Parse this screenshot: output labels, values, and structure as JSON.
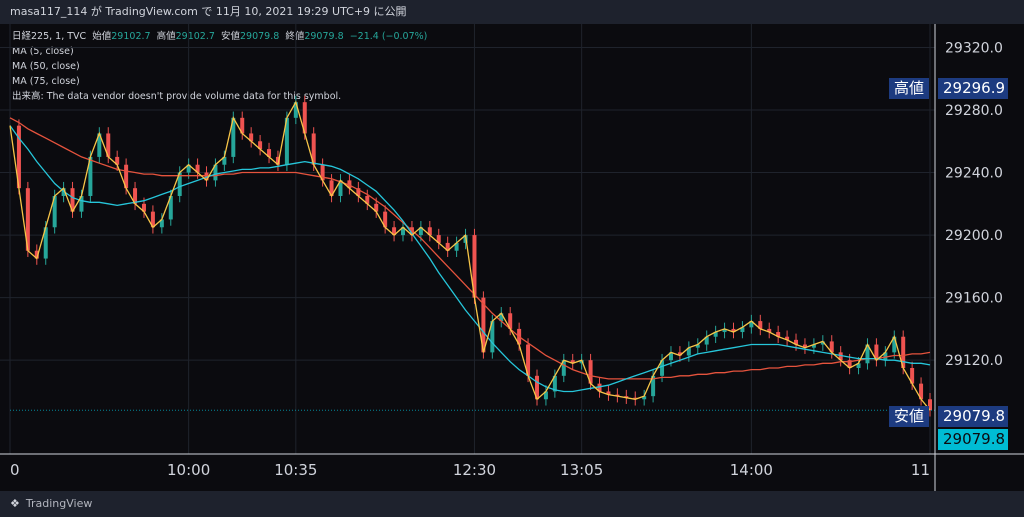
{
  "header": {
    "title": "masa117_114 が TradingView.com で 11月 10, 2021 19:29 UTC+9 に公開"
  },
  "legend": {
    "symbol": "日経225, 1, TVC",
    "open_label": "始値",
    "open": "29102.7",
    "high_label": "高値",
    "high": "29102.7",
    "low_label": "安値",
    "low": "29079.8",
    "close_label": "終値",
    "close": "29079.8",
    "change": "−21.4 (−0.07%)",
    "ma1": "MA (5, close)",
    "ma2": "MA (50, close)",
    "ma3": "MA (75, close)",
    "volume": "出来高: The data vendor doesn't provide volume data for this symbol."
  },
  "tags": {
    "high_label": "高値",
    "high_value": "29296.9",
    "low_label": "安値",
    "low_value": "29079.8",
    "last_value": "29079.8"
  },
  "footer": {
    "brand": "TradingView"
  },
  "colors": {
    "up": "#26a69a",
    "down": "#ef5350",
    "ma5": "#f7c548",
    "ma50": "#26c6da",
    "ma75": "#e5533d"
  },
  "chart_data": {
    "type": "line",
    "ylim": [
      29060,
      29335
    ],
    "yticks": [
      29320,
      29280,
      29240,
      29200,
      29160,
      29120
    ],
    "ytick_labels": [
      "29320.0",
      "29280.0",
      "29240.0",
      "29200.0",
      "29160.0",
      "29120.0"
    ],
    "xticks": [
      {
        "label": "0",
        "i": 0
      },
      {
        "label": "10:00",
        "i": 20
      },
      {
        "label": "10:35",
        "i": 32
      },
      {
        "label": "12:30",
        "i": 52
      },
      {
        "label": "13:05",
        "i": 64
      },
      {
        "label": "14:00",
        "i": 83
      },
      {
        "label": "11",
        "i": 103
      }
    ],
    "n": 104,
    "series": [
      {
        "name": "MA (5, close)",
        "type": "ma5",
        "values": [
          29270,
          29230,
          29190,
          29185,
          29205,
          29225,
          29230,
          29215,
          29225,
          29250,
          29265,
          29250,
          29245,
          29230,
          29220,
          29215,
          29205,
          29210,
          29225,
          29240,
          29245,
          29240,
          29235,
          29245,
          29250,
          29275,
          29265,
          29260,
          29255,
          29250,
          29245,
          29275,
          29285,
          29265,
          29245,
          29235,
          29225,
          29235,
          29230,
          29225,
          29220,
          29215,
          29205,
          29200,
          29205,
          29200,
          29205,
          29200,
          29195,
          29190,
          29195,
          29200,
          29160,
          29125,
          29145,
          29150,
          29140,
          29130,
          29110,
          29095,
          29100,
          29110,
          29120,
          29118,
          29120,
          29105,
          29100,
          29098,
          29097,
          29096,
          29095,
          29097,
          29110,
          29120,
          29125,
          29123,
          29128,
          29130,
          29135,
          29138,
          29140,
          29138,
          29141,
          29145,
          29140,
          29138,
          29135,
          29133,
          29130,
          29128,
          29130,
          29132,
          29125,
          29120,
          29115,
          29118,
          29130,
          29120,
          29125,
          29135,
          29115,
          29105,
          29095,
          29088
        ]
      },
      {
        "name": "MA (50, close)",
        "type": "ma50",
        "values": [
          29270,
          29262,
          29255,
          29247,
          29240,
          29233,
          29228,
          29224,
          29222,
          29221,
          29221,
          29220,
          29219,
          29220,
          29221,
          29222,
          29224,
          29226,
          29228,
          29231,
          29233,
          29235,
          29237,
          29239,
          29240,
          29241,
          29242,
          29242,
          29243,
          29243,
          29244,
          29245,
          29246,
          29247,
          29246,
          29245,
          29244,
          29242,
          29239,
          29236,
          29232,
          29228,
          29222,
          29216,
          29209,
          29201,
          29193,
          29185,
          29176,
          29168,
          29160,
          29152,
          29145,
          29138,
          29131,
          29125,
          29119,
          29114,
          29110,
          29106,
          29103,
          29101,
          29100,
          29100,
          29101,
          29102,
          29103,
          29104,
          29106,
          29108,
          29110,
          29112,
          29114,
          29116,
          29118,
          29120,
          29122,
          29124,
          29125,
          29126,
          29127,
          29128,
          29129,
          29130,
          29130,
          29130,
          29130,
          29129,
          29128,
          29127,
          29126,
          29125,
          29124,
          29123,
          29122,
          29121,
          29121,
          29121,
          29120,
          29120,
          29119,
          29118,
          29118,
          29117
        ]
      },
      {
        "name": "MA (75, close)",
        "type": "ma75",
        "values": [
          29275,
          29272,
          29268,
          29265,
          29262,
          29259,
          29256,
          29253,
          29250,
          29248,
          29246,
          29244,
          29242,
          29241,
          29240,
          29239,
          29239,
          29238,
          29238,
          29238,
          29238,
          29238,
          29238,
          29238,
          29239,
          29239,
          29240,
          29240,
          29240,
          29240,
          29240,
          29240,
          29240,
          29239,
          29238,
          29237,
          29236,
          29234,
          29232,
          29229,
          29226,
          29222,
          29218,
          29213,
          29208,
          29203,
          29198,
          29192,
          29186,
          29180,
          29174,
          29168,
          29162,
          29156,
          29150,
          29145,
          29140,
          29135,
          29131,
          29127,
          29123,
          29120,
          29117,
          29114,
          29112,
          29110,
          29109,
          29108,
          29108,
          29108,
          29108,
          29108,
          29108,
          29109,
          29109,
          29110,
          29110,
          29111,
          29111,
          29112,
          29112,
          29113,
          29113,
          29114,
          29114,
          29115,
          29115,
          29116,
          29116,
          29117,
          29117,
          29118,
          29118,
          29119,
          29119,
          29120,
          29121,
          29121,
          29122,
          29123,
          29123,
          29124,
          29124,
          29125
        ]
      }
    ]
  }
}
